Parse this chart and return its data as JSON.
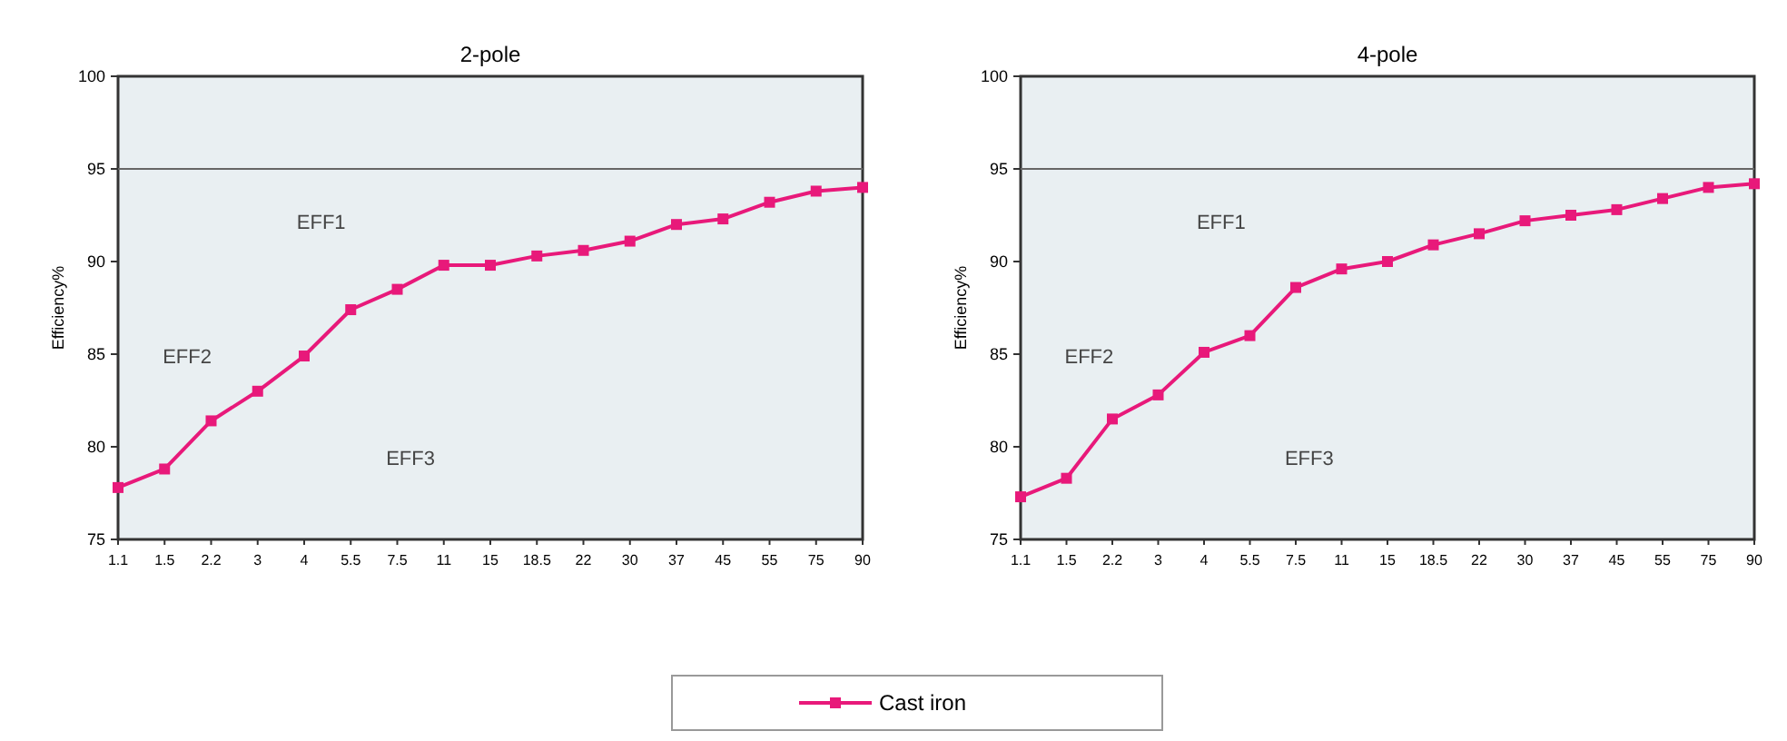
{
  "chart_data": [
    {
      "type": "line",
      "title": "2-pole",
      "ylabel": "Efficiency%",
      "categories": [
        "1.1",
        "1.5",
        "2.2",
        "3",
        "4",
        "5.5",
        "7.5",
        "11",
        "15",
        "18.5",
        "22",
        "30",
        "37",
        "45",
        "55",
        "75",
        "90"
      ],
      "series": [
        {
          "name": "Cast iron",
          "color": "#e8197a",
          "values": [
            77.8,
            78.8,
            81.4,
            83.0,
            84.9,
            87.4,
            88.5,
            89.8,
            89.8,
            90.3,
            90.6,
            91.1,
            92.0,
            92.3,
            93.2,
            93.8,
            94.0
          ]
        }
      ],
      "ylim": [
        75,
        100
      ],
      "yticks": [
        75,
        80,
        85,
        90,
        95,
        100
      ],
      "marker": "square",
      "legend": "bottom",
      "grid": false,
      "ref_lines": [
        {
          "axis": "y",
          "value": 95,
          "color": "#666666"
        }
      ],
      "annotations": [
        "EFF1",
        "EFF2",
        "EFF3"
      ]
    },
    {
      "type": "line",
      "title": "4-pole",
      "ylabel": "Efficiency%",
      "categories": [
        "1.1",
        "1.5",
        "2.2",
        "3",
        "4",
        "5.5",
        "7.5",
        "11",
        "15",
        "18.5",
        "22",
        "30",
        "37",
        "45",
        "55",
        "75",
        "90"
      ],
      "series": [
        {
          "color": "#e8197a",
          "values": [
            77.3,
            78.3,
            81.5,
            82.8,
            85.1,
            86.0,
            88.6,
            89.6,
            90.0,
            90.9,
            91.5,
            92.2,
            92.5,
            92.8,
            93.4,
            94.0,
            94.2
          ]
        }
      ],
      "ylim": [
        75,
        100
      ],
      "yticks": [
        75,
        80,
        85,
        90,
        95,
        100
      ],
      "marker": "square",
      "legend": false,
      "grid": false,
      "ref_lines": [
        {
          "axis": "y",
          "value": 95,
          "color": "#666666"
        }
      ],
      "annotations": [
        "EFF1",
        "EFF2",
        "EFF3"
      ]
    }
  ]
}
